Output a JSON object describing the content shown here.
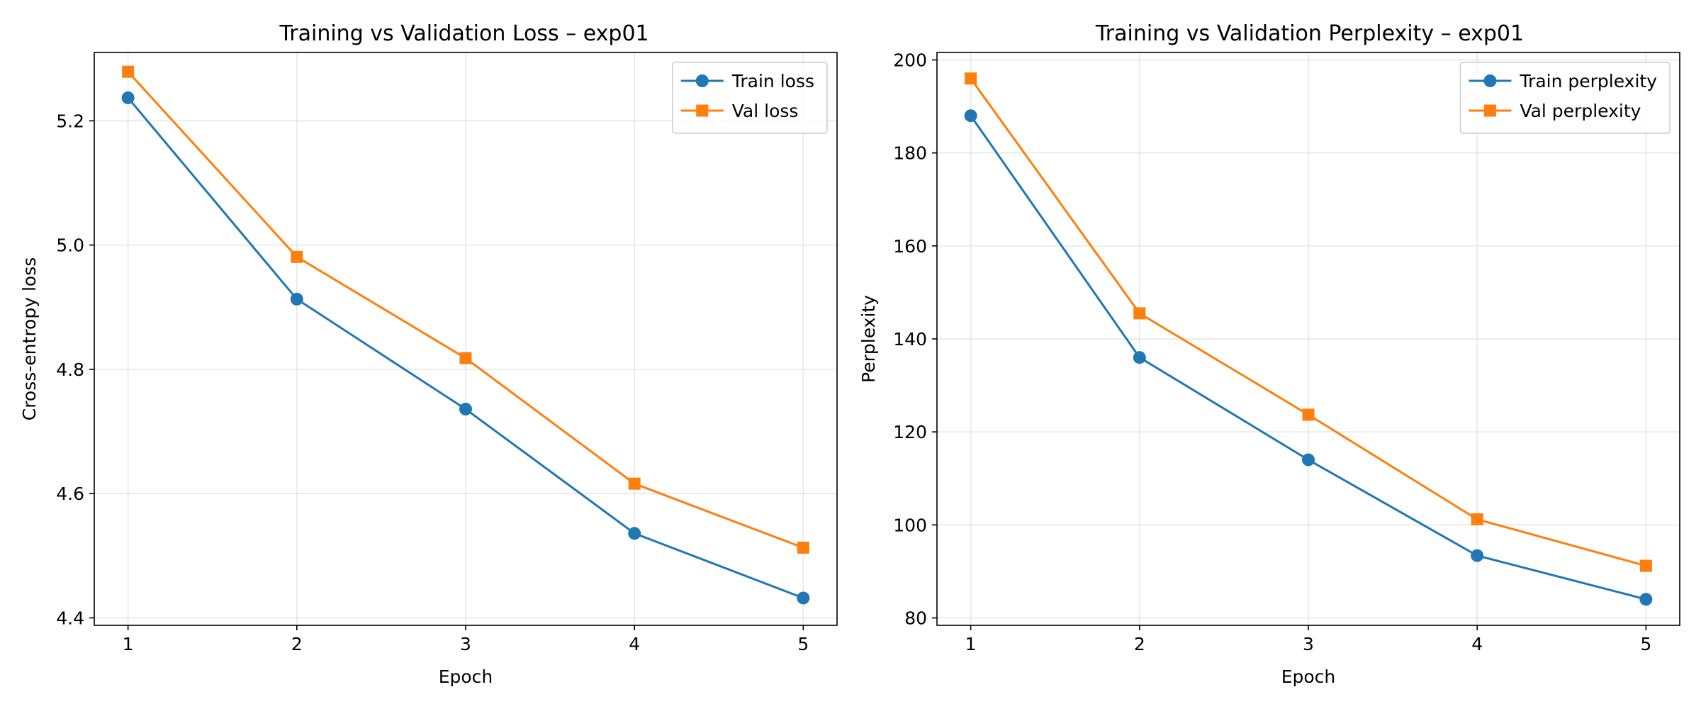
{
  "chart_data": [
    {
      "type": "line",
      "title": "Training vs Validation Loss – exp01",
      "xlabel": "Epoch",
      "ylabel": "Cross-entropy loss",
      "xlim": [
        0.8,
        5.2
      ],
      "ylim": [
        4.388,
        5.31
      ],
      "xticks": [
        1,
        2,
        3,
        4,
        5
      ],
      "yticks": [
        4.4,
        4.6,
        4.8,
        5.0,
        5.2
      ],
      "ytick_decimals": 1,
      "grid": true,
      "legend_position": "top-right",
      "x": [
        1,
        2,
        3,
        4,
        5
      ],
      "series": [
        {
          "name": "Train loss",
          "values": [
            5.237,
            4.913,
            4.736,
            4.536,
            4.432
          ],
          "color": "#1f77b4",
          "marker": "circle"
        },
        {
          "name": "Val loss",
          "values": [
            5.279,
            4.981,
            4.818,
            4.616,
            4.513
          ],
          "color": "#ff7f0e",
          "marker": "square"
        }
      ]
    },
    {
      "type": "line",
      "title": "Training vs Validation Perplexity – exp01",
      "xlabel": "Epoch",
      "ylabel": "Perplexity",
      "xlim": [
        0.8,
        5.2
      ],
      "ylim": [
        78.4,
        201.6
      ],
      "xticks": [
        1,
        2,
        3,
        4,
        5
      ],
      "yticks": [
        80,
        100,
        120,
        140,
        160,
        180,
        200
      ],
      "ytick_decimals": 0,
      "grid": true,
      "legend_position": "top-right",
      "x": [
        1,
        2,
        3,
        4,
        5
      ],
      "series": [
        {
          "name": "Train perplexity",
          "values": [
            188.0,
            136.0,
            114.0,
            93.4,
            84.0
          ],
          "color": "#1f77b4",
          "marker": "circle"
        },
        {
          "name": "Val perplexity",
          "values": [
            196.0,
            145.5,
            123.7,
            101.2,
            91.2
          ],
          "color": "#ff7f0e",
          "marker": "square"
        }
      ]
    }
  ]
}
